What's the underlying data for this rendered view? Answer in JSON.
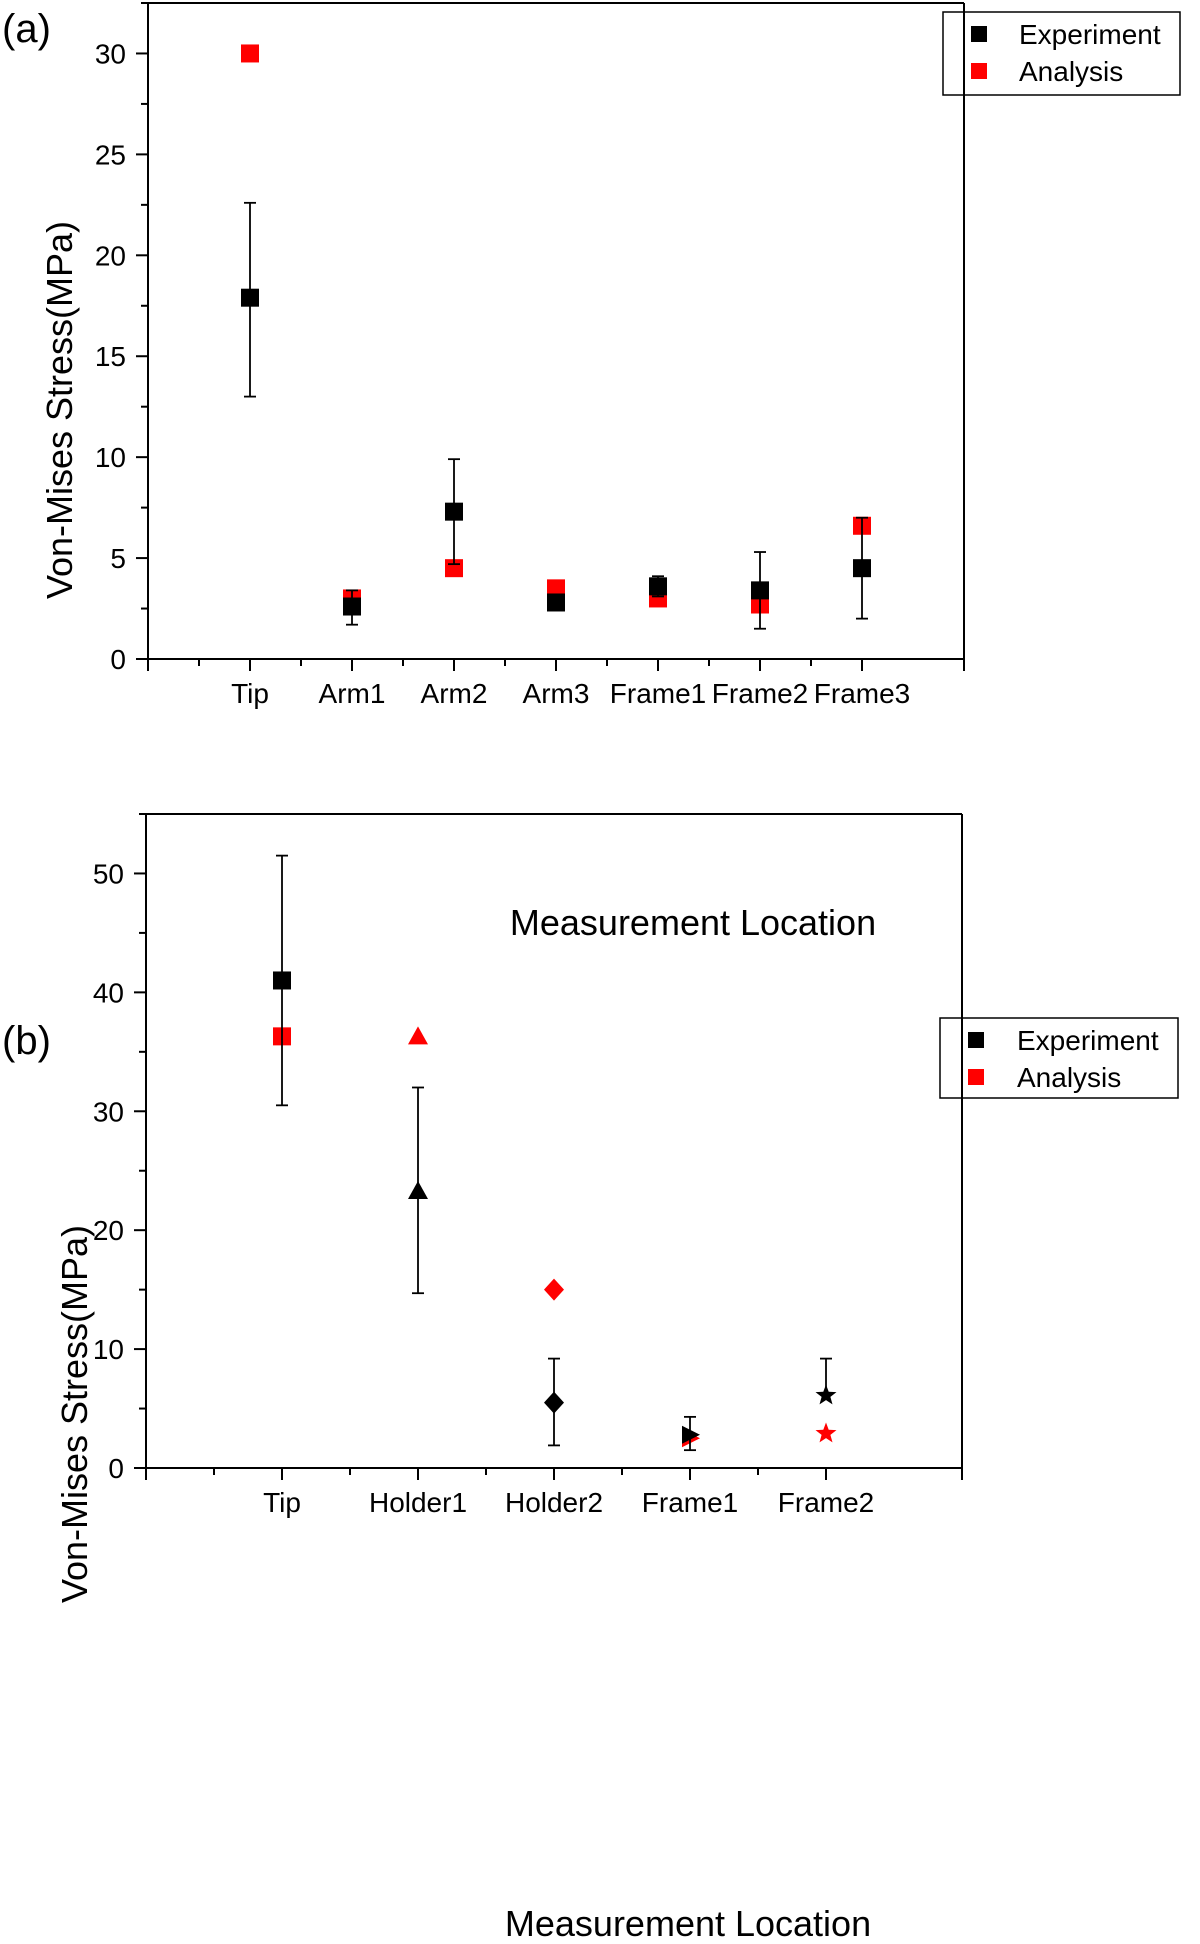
{
  "colors": {
    "experiment": "#000000",
    "analysis": "#ff0000",
    "axis": "#000000"
  },
  "chart_data": [
    {
      "type": "scatter",
      "panel_label": "(a)",
      "xlabel": "Measurement Location",
      "ylabel": "Von-Mises Stress(MPa)",
      "categories": [
        "Tip",
        "Arm1",
        "Arm2",
        "Arm3",
        "Frame1",
        "Frame2",
        "Frame3"
      ],
      "ylim": [
        0,
        32.5
      ],
      "yticks": [
        0,
        5,
        10,
        15,
        20,
        25,
        30
      ],
      "legend": {
        "position": "top-right",
        "entries": [
          "Experiment",
          "Analysis"
        ]
      },
      "series": [
        {
          "name": "Experiment",
          "color": "#000000",
          "marker": [
            "square",
            "square",
            "square",
            "square",
            "square",
            "square",
            "square"
          ],
          "values": [
            17.9,
            2.6,
            7.3,
            2.8,
            3.6,
            3.4,
            4.5
          ],
          "error_low": [
            13.0,
            1.7,
            4.7,
            null,
            3.1,
            1.5,
            2.0
          ],
          "error_high": [
            22.6,
            3.4,
            9.9,
            null,
            4.1,
            5.3,
            7.0
          ]
        },
        {
          "name": "Analysis",
          "color": "#ff0000",
          "marker": [
            "square",
            "square",
            "square",
            "square",
            "square",
            "square",
            "square"
          ],
          "values": [
            30.0,
            3.0,
            4.5,
            3.5,
            3.0,
            2.7,
            6.6
          ]
        }
      ]
    },
    {
      "type": "scatter",
      "panel_label": "(b)",
      "xlabel": "Measurement Location",
      "ylabel": "Von-Mises Stress(MPa)",
      "categories": [
        "Tip",
        "Holder1",
        "Holder2",
        "Frame1",
        "Frame2"
      ],
      "ylim": [
        0,
        55
      ],
      "yticks": [
        0,
        10,
        20,
        30,
        40,
        50
      ],
      "legend": {
        "position": "top-right",
        "entries": [
          "Experiment",
          "Analysis"
        ]
      },
      "series": [
        {
          "name": "Experiment",
          "color": "#000000",
          "marker": [
            "square",
            "triangle",
            "diamond",
            "triangle-right",
            "star"
          ],
          "values": [
            41.0,
            23.3,
            5.5,
            2.8,
            6.1
          ],
          "error_low": [
            30.5,
            14.7,
            1.9,
            1.5,
            null
          ],
          "error_high": [
            51.5,
            32.0,
            9.2,
            4.3,
            9.2
          ]
        },
        {
          "name": "Analysis",
          "color": "#ff0000",
          "marker": [
            "square",
            "triangle",
            "diamond",
            "triangle-right",
            "star"
          ],
          "values": [
            36.3,
            36.3,
            15.0,
            2.5,
            2.9
          ]
        }
      ]
    }
  ]
}
